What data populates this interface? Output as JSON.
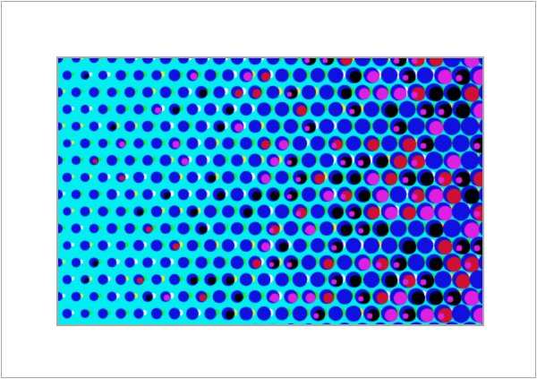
{
  "image": {
    "subject": "halftone",
    "colors": {
      "background": "#00eef0",
      "dot": "#1010e0",
      "overlay_dark": "#000000",
      "overlay_magenta": "#e020e0",
      "overlay_red": "#d01030",
      "accent_green": "#20f020",
      "accent_white": "#ffffff",
      "accent_yellow": "#f0f020"
    }
  }
}
